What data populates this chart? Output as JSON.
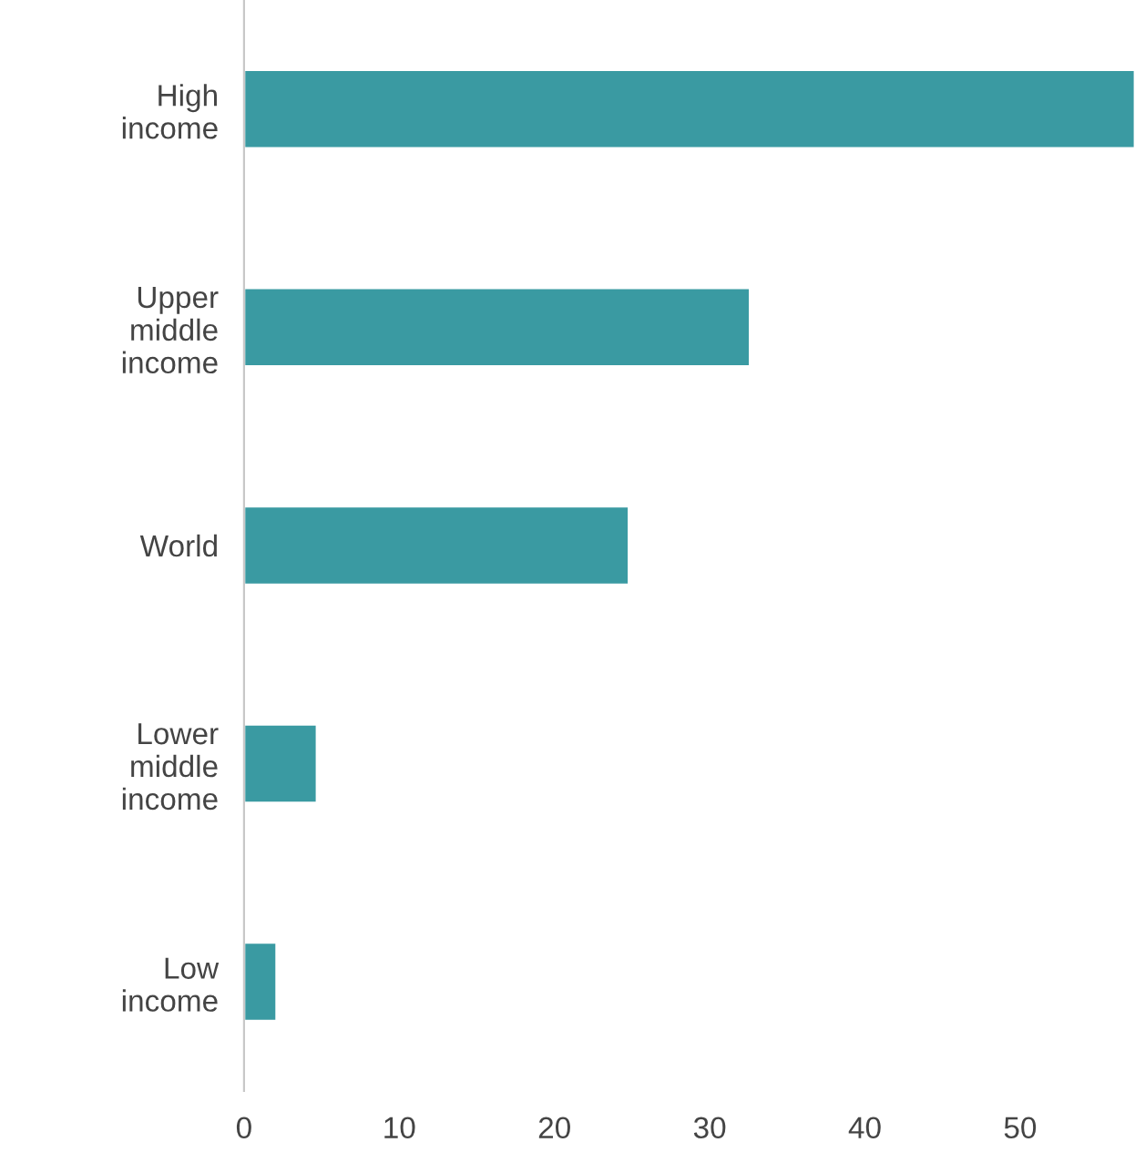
{
  "chart_data": {
    "type": "bar",
    "orientation": "horizontal",
    "categories": [
      "High\nincome",
      "Upper\nmiddle\nincome",
      "World",
      "Lower\nmiddle\nincome",
      "Low\nincome"
    ],
    "values": [
      57.4,
      32.6,
      24.8,
      4.7,
      2.1
    ],
    "color": "#3a9aa2",
    "xlim": [
      0,
      57.4
    ],
    "xticks": [
      0,
      10,
      20,
      30,
      40,
      50
    ],
    "grid": false,
    "legend": false
  }
}
